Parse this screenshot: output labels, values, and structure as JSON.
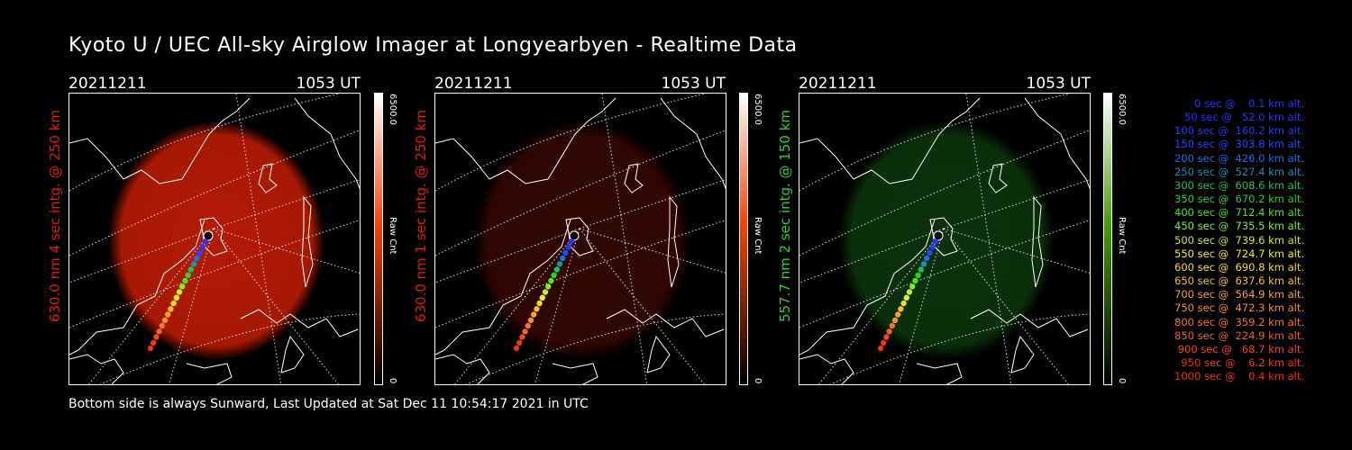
{
  "page": {
    "title": "Kyoto U / UEC All-sky Airglow Imager at Longyearbyen - Realtime Data",
    "footer": "Bottom side is always Sunward, Last Updated at Sat Dec 11 10:54:17 2021 in UTC"
  },
  "panels": [
    {
      "date": "20211211",
      "time": "1053 UT",
      "vlabel": "630.0 nm 4 sec intg. @ 250 km",
      "label_color": "#e02000",
      "colorbar_max": "6500.0",
      "colorbar_unit": "Raw Cnt",
      "colorbar_min": "0",
      "colorbar_top_color": "#ffffff",
      "colorbar_mid_color": "#ff4000",
      "glow_color": "#c81e04",
      "glow_intensity": 0.9
    },
    {
      "date": "20211211",
      "time": "1053 UT",
      "vlabel": "630.0 nm 1 sec intg. @ 250 km",
      "label_color": "#e02000",
      "colorbar_max": "6500.0",
      "colorbar_unit": "Raw Cnt",
      "colorbar_min": "0",
      "colorbar_top_color": "#ffffff",
      "colorbar_mid_color": "#ff4000",
      "glow_color": "#3a0804",
      "glow_intensity": 0.85
    },
    {
      "date": "20211211",
      "time": "1053 UT",
      "vlabel": "557.7 nm 2 sec intg. @ 150 km",
      "label_color": "#30d030",
      "colorbar_max": "6500.0",
      "colorbar_unit": "Raw Cnt",
      "colorbar_min": "0",
      "colorbar_top_color": "#ffffff",
      "colorbar_mid_color": "#40a000",
      "glow_color": "#0e3a0e",
      "glow_intensity": 0.85
    }
  ],
  "legend": [
    {
      "text": "0 sec @    0.1 km alt.",
      "color": "#3030ff"
    },
    {
      "text": "50 sec @   52.0 km alt.",
      "color": "#3030ff"
    },
    {
      "text": "100 sec @  160.2 km alt.",
      "color": "#2838ff"
    },
    {
      "text": "150 sec @  303.8 km alt.",
      "color": "#2048ff"
    },
    {
      "text": "200 sec @  426.0 km alt.",
      "color": "#2070e0"
    },
    {
      "text": "250 sec @  527.4 km alt.",
      "color": "#2090b0"
    },
    {
      "text": "300 sec @  608.6 km alt.",
      "color": "#20c060"
    },
    {
      "text": "350 sec @  670.2 km alt.",
      "color": "#30d030"
    },
    {
      "text": "400 sec @  712.4 km alt.",
      "color": "#50e020"
    },
    {
      "text": "450 sec @  735.5 km alt.",
      "color": "#80f020"
    },
    {
      "text": "500 sec @  739.6 km alt.",
      "color": "#c0f020"
    },
    {
      "text": "550 sec @  724.7 km alt.",
      "color": "#f0f020"
    },
    {
      "text": "600 sec @  690.8 km alt.",
      "color": "#f0e020"
    },
    {
      "text": "650 sec @  637.6 km alt.",
      "color": "#f0c030"
    },
    {
      "text": "700 sec @  564.9 km alt.",
      "color": "#f0a830"
    },
    {
      "text": "750 sec @  472.3 km alt.",
      "color": "#f09030"
    },
    {
      "text": "800 sec @  359.2 km alt.",
      "color": "#f07830"
    },
    {
      "text": "850 sec @  224.9 km alt.",
      "color": "#f06030"
    },
    {
      "text": "900 sec @   68.7 km alt.",
      "color": "#f04820"
    },
    {
      "text": "950 sec @    6.2 km alt.",
      "color": "#f03818"
    },
    {
      "text": "1000 sec @    0.4 km alt.",
      "color": "#f03010"
    }
  ]
}
